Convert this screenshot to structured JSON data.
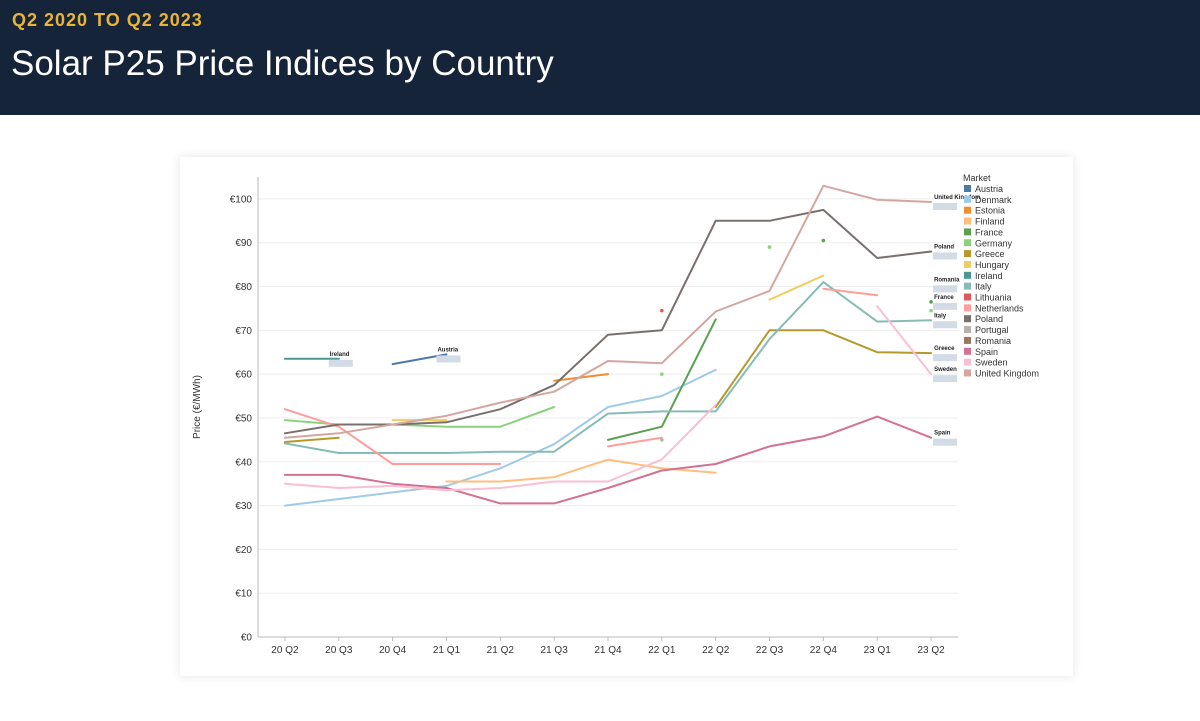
{
  "header": {
    "subtitle": "Q2 2020 TO Q2 2023",
    "title": "Solar P25 Price Indices by Country"
  },
  "chart_data": {
    "type": "line",
    "ylabel": "Price (€/MWh)",
    "xlabel": "",
    "x": [
      "20 Q2",
      "20 Q3",
      "20 Q4",
      "21 Q1",
      "21 Q2",
      "21 Q3",
      "21 Q4",
      "22 Q1",
      "22 Q2",
      "22 Q3",
      "22 Q4",
      "23 Q1",
      "23 Q2"
    ],
    "ylim": [
      0,
      105
    ],
    "yticks": [
      0,
      10,
      20,
      30,
      40,
      50,
      60,
      70,
      80,
      90,
      100
    ],
    "ytick_labels": [
      "€0",
      "€10",
      "€20",
      "€30",
      "€40",
      "€50",
      "€60",
      "€70",
      "€80",
      "€90",
      "€100"
    ],
    "grid": "horizontal",
    "legend_title": "Market",
    "legend_position": "right",
    "series": [
      {
        "name": "Austria",
        "color": "#4e79a7",
        "values": [
          null,
          null,
          62.3,
          64.5,
          null,
          null,
          null,
          null,
          null,
          null,
          null,
          null,
          null
        ]
      },
      {
        "name": "Denmark",
        "color": "#a0cbe8",
        "values": [
          30,
          31.5,
          33,
          34.5,
          38.5,
          44,
          52.5,
          55,
          61,
          null,
          null,
          null,
          null
        ]
      },
      {
        "name": "Estonia",
        "color": "#f28e2b",
        "values": [
          null,
          null,
          null,
          null,
          null,
          58.5,
          60,
          null,
          null,
          null,
          null,
          null,
          null
        ]
      },
      {
        "name": "Finland",
        "color": "#ffbe7d",
        "values": [
          null,
          null,
          null,
          35.5,
          35.5,
          36.5,
          40.5,
          38.5,
          37.5,
          null,
          null,
          null,
          null
        ]
      },
      {
        "name": "France",
        "color": "#59a14f",
        "values": [
          null,
          null,
          null,
          null,
          null,
          null,
          45,
          48,
          72.5,
          null,
          90.5,
          null,
          76.5
        ]
      },
      {
        "name": "Germany",
        "color": "#8cd17d",
        "values": [
          49.5,
          48.5,
          48.5,
          48,
          48,
          52.5,
          null,
          60,
          null,
          89,
          null,
          null,
          74.5
        ]
      },
      {
        "name": "Greece",
        "color": "#b6992d",
        "values": [
          44.5,
          45.5,
          null,
          null,
          null,
          null,
          null,
          null,
          52.5,
          70,
          70,
          65,
          64.8
        ]
      },
      {
        "name": "Hungary",
        "color": "#f1ce63",
        "values": [
          null,
          null,
          49.5,
          49.5,
          null,
          null,
          null,
          null,
          null,
          77,
          82.5,
          null,
          null
        ]
      },
      {
        "name": "Ireland",
        "color": "#499894",
        "values": [
          63.5,
          63.5,
          null,
          null,
          null,
          null,
          null,
          null,
          null,
          null,
          null,
          null,
          null
        ]
      },
      {
        "name": "Italy",
        "color": "#86bcb6",
        "values": [
          44.2,
          42,
          42,
          42,
          42.3,
          42.3,
          51,
          51.5,
          51.5,
          68,
          81,
          72,
          72.3
        ]
      },
      {
        "name": "Lithuania",
        "color": "#e15759",
        "values": [
          null,
          null,
          null,
          null,
          null,
          null,
          null,
          74.5,
          null,
          null,
          null,
          null,
          null
        ]
      },
      {
        "name": "Netherlands",
        "color": "#ff9d9a",
        "values": [
          52,
          48,
          39.5,
          39.5,
          39.5,
          null,
          43.5,
          45.5,
          null,
          null,
          79.5,
          78,
          null
        ]
      },
      {
        "name": "Poland",
        "color": "#79706e",
        "values": [
          46.5,
          48.5,
          48.5,
          49,
          52,
          57.5,
          69,
          70,
          95,
          95,
          97.5,
          86.5,
          88
        ]
      },
      {
        "name": "Portugal",
        "color": "#bab0ac",
        "values": [
          null,
          null,
          null,
          null,
          null,
          null,
          null,
          45,
          null,
          null,
          null,
          null,
          null
        ]
      },
      {
        "name": "Romania",
        "color": "#9d7660",
        "values": [
          null,
          null,
          null,
          null,
          null,
          null,
          null,
          null,
          null,
          null,
          null,
          null,
          null
        ]
      },
      {
        "name": "Spain",
        "color": "#d37295",
        "values": [
          37,
          37,
          35,
          34,
          30.5,
          30.5,
          34,
          38,
          39.5,
          43.5,
          45.8,
          50.3,
          45.5
        ]
      },
      {
        "name": "Sweden",
        "color": "#fabfd2",
        "values": [
          35,
          34,
          34.5,
          33.5,
          34,
          35.5,
          35.5,
          40.5,
          53,
          null,
          null,
          75.5,
          60
        ]
      },
      {
        "name": "United Kingdom",
        "color": "#d4a6a0",
        "values": [
          45.5,
          46.5,
          48.5,
          50.5,
          53.5,
          56,
          63,
          62.5,
          74.3,
          79,
          103,
          99.8,
          99.3
        ]
      }
    ],
    "annotations": [
      {
        "text": "Ireland",
        "x": "20 Q3",
        "y": 63.5
      },
      {
        "text": "Austria",
        "x": "21 Q1",
        "y": 64.5
      },
      {
        "text": "United Kingdom",
        "x": "23 Q2",
        "y": 99.3
      },
      {
        "text": "Poland",
        "x": "23 Q2",
        "y": 88
      },
      {
        "text": "Romania",
        "x": "23 Q2",
        "y": 80.5
      },
      {
        "text": "France",
        "x": "23 Q2",
        "y": 76.5
      },
      {
        "text": "Italy",
        "x": "23 Q2",
        "y": 72.3
      },
      {
        "text": "Greece",
        "x": "23 Q2",
        "y": 64.8
      },
      {
        "text": "Sweden",
        "x": "23 Q2",
        "y": 60
      },
      {
        "text": "Spain",
        "x": "23 Q2",
        "y": 45.5
      }
    ]
  }
}
